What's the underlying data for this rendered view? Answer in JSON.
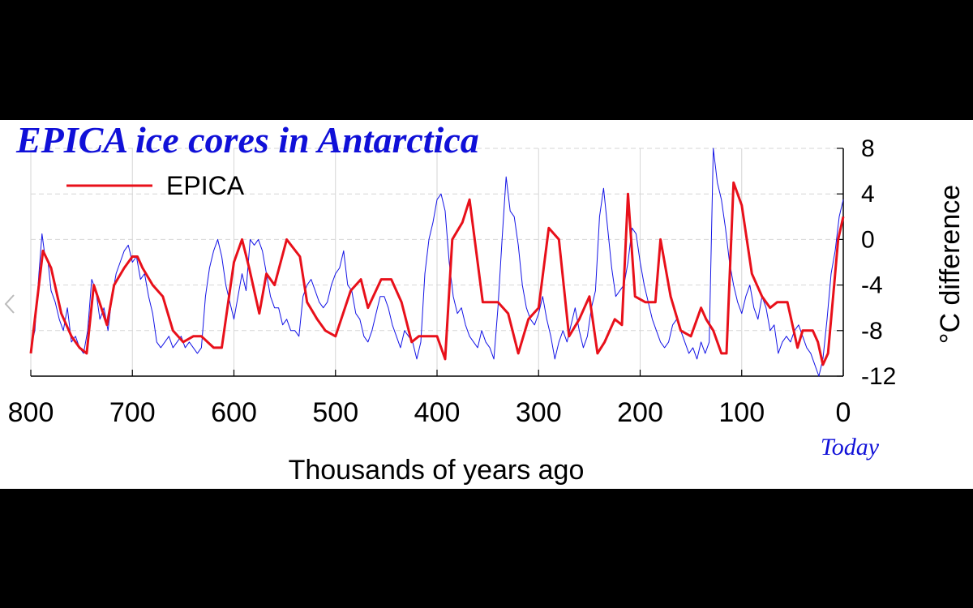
{
  "chart_data": {
    "type": "line",
    "title": "EPICA ice cores in Antarctica",
    "xlabel": "Thousands of years ago",
    "ylabel": "°C difference",
    "x_annotation": "Today",
    "xlim": [
      800,
      0
    ],
    "ylim": [
      -12,
      8
    ],
    "xticks": [
      "800",
      "700",
      "600",
      "500",
      "400",
      "300",
      "200",
      "100",
      "0"
    ],
    "yticks": [
      "8",
      "4",
      "0",
      "-4",
      "-8",
      "-12"
    ],
    "grid": true,
    "legend": {
      "position": "top-left",
      "entries": [
        "EPICA"
      ]
    },
    "series": [
      {
        "name": "EPICA",
        "color": "#e8101a",
        "x": [
          800,
          788,
          780,
          770,
          760,
          752,
          745,
          738,
          725,
          718,
          708,
          700,
          695,
          690,
          680,
          670,
          660,
          650,
          640,
          632,
          620,
          612,
          600,
          592,
          585,
          575,
          568,
          560,
          548,
          535,
          528,
          518,
          510,
          500,
          485,
          475,
          468,
          455,
          445,
          435,
          425,
          418,
          400,
          392,
          385,
          375,
          368,
          355,
          340,
          330,
          320,
          310,
          300,
          290,
          280,
          270,
          260,
          250,
          242,
          235,
          225,
          218,
          212,
          205,
          195,
          185,
          180,
          170,
          160,
          150,
          140,
          135,
          128,
          120,
          115,
          108,
          100,
          90,
          80,
          72,
          65,
          55,
          45,
          40,
          30,
          25,
          20,
          15,
          10,
          5,
          0
        ],
        "values": [
          -10,
          -1,
          -2.5,
          -6.5,
          -8.5,
          -9.5,
          -10,
          -4,
          -7.5,
          -4,
          -2.5,
          -1.5,
          -1.5,
          -2.5,
          -4,
          -5,
          -8,
          -9,
          -8.5,
          -8.5,
          -9.5,
          -9.5,
          -2,
          0,
          -2.5,
          -6.5,
          -3,
          -4,
          0,
          -1.5,
          -5.5,
          -7,
          -8,
          -8.5,
          -4.5,
          -3.5,
          -6,
          -3.5,
          -3.5,
          -5.5,
          -9,
          -8.5,
          -8.5,
          -10.5,
          0,
          1.5,
          3.5,
          -5.5,
          -5.5,
          -6.5,
          -10,
          -7,
          -6,
          1,
          0,
          -8.5,
          -7,
          -5,
          -10,
          -9,
          -7,
          -7.5,
          4,
          -5,
          -5.5,
          -5.5,
          0,
          -5,
          -8,
          -8.5,
          -6,
          -7,
          -8,
          -10,
          -10,
          5,
          3,
          -3,
          -5,
          -6,
          -5.5,
          -5.5,
          -9.5,
          -8,
          -8,
          -9,
          -11,
          -10,
          -5,
          0,
          2
        ]
      },
      {
        "name": "",
        "color": "#1414e6",
        "x": [
          800,
          796,
          792,
          789,
          786,
          783,
          780,
          776,
          772,
          768,
          764,
          760,
          756,
          752,
          748,
          744,
          740,
          736,
          732,
          728,
          724,
          720,
          716,
          712,
          708,
          704,
          700,
          696,
          692,
          688,
          684,
          680,
          676,
          672,
          668,
          664,
          660,
          656,
          652,
          648,
          644,
          640,
          636,
          632,
          628,
          624,
          620,
          616,
          612,
          608,
          604,
          600,
          596,
          592,
          588,
          584,
          580,
          576,
          572,
          568,
          564,
          560,
          556,
          552,
          548,
          544,
          540,
          536,
          532,
          528,
          524,
          520,
          516,
          512,
          508,
          504,
          500,
          496,
          492,
          488,
          484,
          480,
          476,
          472,
          468,
          464,
          460,
          456,
          452,
          448,
          444,
          440,
          436,
          432,
          428,
          424,
          420,
          416,
          412,
          408,
          404,
          400,
          396,
          392,
          388,
          384,
          380,
          376,
          372,
          368,
          364,
          360,
          356,
          352,
          348,
          344,
          340,
          336,
          332,
          328,
          324,
          320,
          316,
          312,
          308,
          304,
          300,
          296,
          292,
          288,
          284,
          280,
          276,
          272,
          268,
          264,
          260,
          256,
          252,
          248,
          244,
          240,
          236,
          232,
          228,
          224,
          220,
          216,
          212,
          208,
          204,
          200,
          196,
          192,
          188,
          184,
          180,
          176,
          172,
          168,
          164,
          160,
          156,
          152,
          148,
          144,
          140,
          136,
          132,
          128,
          124,
          120,
          116,
          112,
          108,
          104,
          100,
          96,
          92,
          88,
          84,
          80,
          76,
          72,
          68,
          64,
          60,
          56,
          52,
          48,
          44,
          40,
          36,
          32,
          28,
          24,
          20,
          16,
          12,
          8,
          4,
          0
        ],
        "values": [
          -9.5,
          -8,
          -3,
          0.5,
          -1.5,
          -2,
          -4.5,
          -5.5,
          -7,
          -8,
          -6,
          -9,
          -8.5,
          -9.5,
          -10,
          -8,
          -3.5,
          -4.5,
          -7,
          -6,
          -8,
          -5,
          -3,
          -2,
          -1,
          -0.5,
          -2,
          -1.5,
          -3.5,
          -3,
          -5,
          -6.5,
          -9,
          -9.5,
          -9,
          -8.5,
          -9.5,
          -9,
          -8.5,
          -9.5,
          -9,
          -9.5,
          -10,
          -9.5,
          -5,
          -2.5,
          -1,
          0,
          -1.5,
          -4,
          -5.5,
          -7,
          -5,
          -3,
          -4.5,
          0,
          -0.5,
          0,
          -1,
          -3,
          -5,
          -6,
          -6,
          -7.5,
          -7,
          -8,
          -8,
          -8.5,
          -5,
          -4,
          -3.5,
          -4.5,
          -5.5,
          -6,
          -5.5,
          -4,
          -3,
          -2.5,
          -1,
          -4,
          -4.5,
          -6.5,
          -7,
          -8.5,
          -9,
          -8,
          -6.5,
          -5,
          -5,
          -6,
          -7.5,
          -8.5,
          -9.5,
          -8,
          -8.5,
          -9,
          -10.5,
          -9,
          -3,
          0,
          1.5,
          3.5,
          4,
          2.5,
          -2,
          -5,
          -6.5,
          -6,
          -7.5,
          -8.5,
          -9,
          -9.5,
          -8,
          -9,
          -9.5,
          -10.5,
          -6,
          0,
          5.5,
          2.5,
          2,
          -0.5,
          -4,
          -6,
          -7,
          -7.5,
          -6.5,
          -5,
          -7,
          -8.5,
          -10.5,
          -9,
          -8,
          -9,
          -7.5,
          -6,
          -8,
          -9.5,
          -8.5,
          -6,
          -4.5,
          2,
          4.5,
          1,
          -2.5,
          -5,
          -4.5,
          -4,
          -2,
          1,
          0.5,
          -2,
          -4,
          -5.5,
          -7,
          -8,
          -9,
          -9.5,
          -9,
          -7.5,
          -7,
          -8,
          -9,
          -10,
          -9.5,
          -10.5,
          -9,
          -10,
          -9,
          8,
          5,
          3.5,
          1,
          -2,
          -4,
          -5.5,
          -6.5,
          -5,
          -4,
          -6,
          -7,
          -5,
          -6,
          -8,
          -7.5,
          -10,
          -9,
          -8.5,
          -9,
          -8,
          -7.5,
          -8.5,
          -9.5,
          -10,
          -11,
          -12,
          -10.5,
          -7,
          -3,
          -1,
          2,
          3.5
        ]
      }
    ]
  }
}
